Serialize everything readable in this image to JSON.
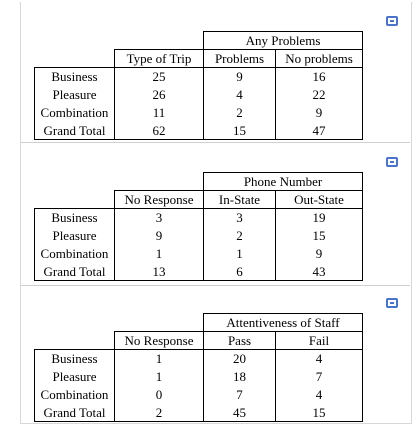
{
  "tables": [
    {
      "group_header": "Any Problems",
      "columns": [
        "Type of Trip",
        "Problems",
        "No problems"
      ],
      "rows": [
        {
          "label": "Business",
          "values": [
            "25",
            "9",
            "16"
          ]
        },
        {
          "label": "Pleasure",
          "values": [
            "26",
            "4",
            "22"
          ]
        },
        {
          "label": "Combination",
          "values": [
            "11",
            "2",
            "9"
          ]
        },
        {
          "label": "Grand Total",
          "values": [
            "62",
            "15",
            "47"
          ]
        }
      ]
    },
    {
      "group_header": "Phone Number",
      "columns": [
        "No Response",
        "In-State",
        "Out-State"
      ],
      "rows": [
        {
          "label": "Business",
          "values": [
            "3",
            "3",
            "19"
          ]
        },
        {
          "label": "Pleasure",
          "values": [
            "9",
            "2",
            "15"
          ]
        },
        {
          "label": "Combination",
          "values": [
            "1",
            "1",
            "9"
          ]
        },
        {
          "label": "Grand Total",
          "values": [
            "13",
            "6",
            "43"
          ]
        }
      ]
    },
    {
      "group_header": "Attentiveness of Staff",
      "columns": [
        "No Response",
        "Pass",
        "Fail"
      ],
      "rows": [
        {
          "label": "Business",
          "values": [
            "1",
            "20",
            "4"
          ]
        },
        {
          "label": "Pleasure",
          "values": [
            "1",
            "18",
            "7"
          ]
        },
        {
          "label": "Combination",
          "values": [
            "0",
            "7",
            "4"
          ]
        },
        {
          "label": "Grand Total",
          "values": [
            "2",
            "45",
            "15"
          ]
        }
      ]
    }
  ],
  "colors": {
    "handle": "#4a74c9",
    "frame": "#d8d8d8"
  },
  "icons": [
    "resize-handle-icon"
  ]
}
